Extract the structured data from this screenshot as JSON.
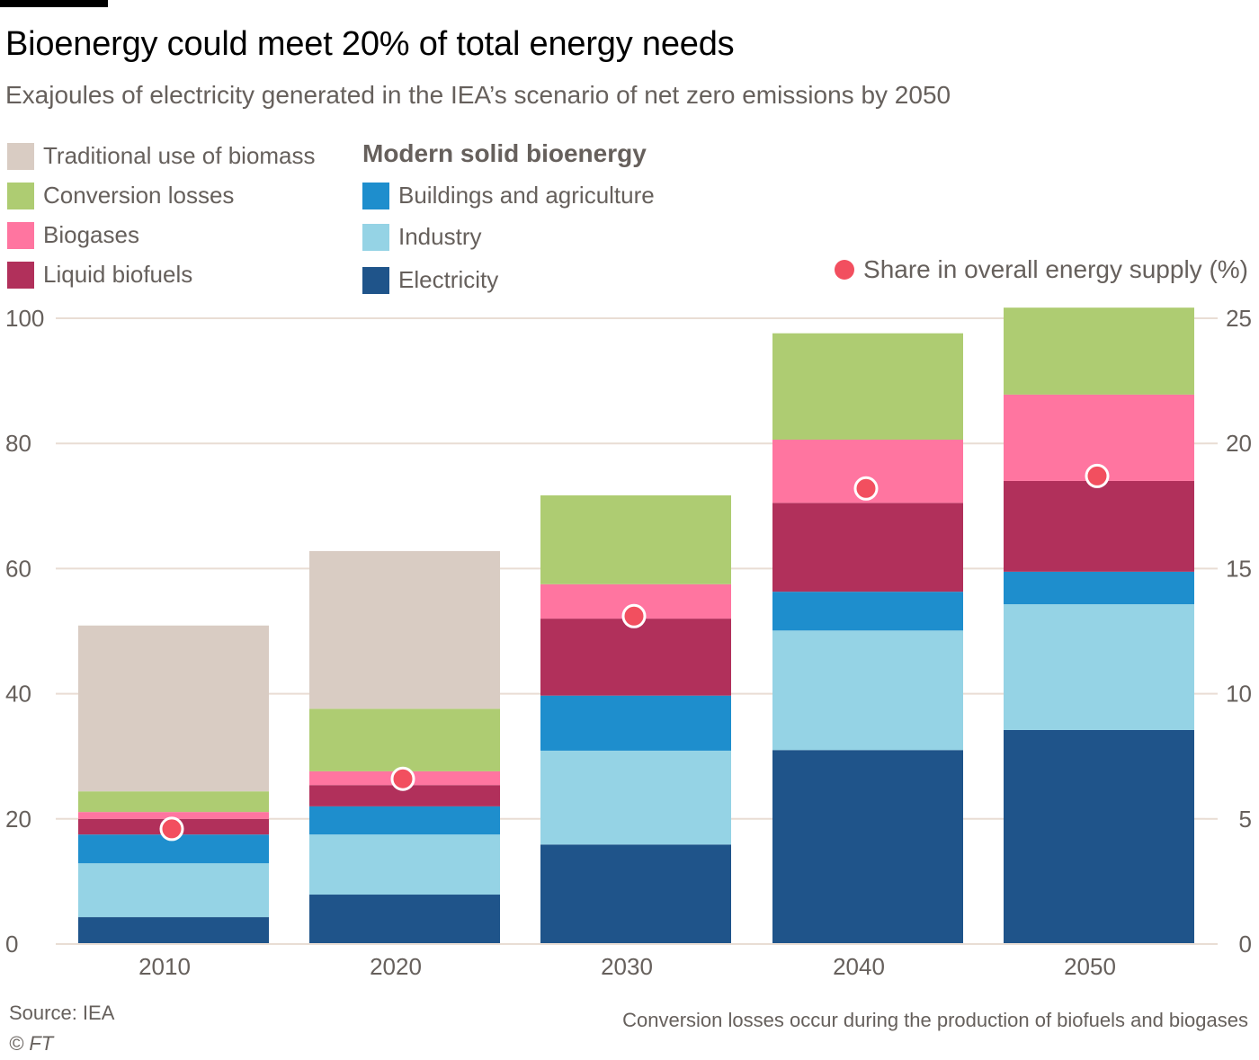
{
  "header": {
    "title": "Bioenergy could meet 20% of total energy needs",
    "subtitle": "Exajoules of electricity generated in the IEA’s scenario of net zero emissions by 2050"
  },
  "legend": {
    "left": [
      {
        "label": "Traditional use of biomass",
        "color": "#d9ccc3"
      },
      {
        "label": "Conversion losses",
        "color": "#aecc72"
      },
      {
        "label": "Biogases",
        "color": "#ff75a0"
      },
      {
        "label": "Liquid biofuels",
        "color": "#b1305b"
      }
    ],
    "heading": "Modern solid bioenergy",
    "right": [
      {
        "label": "Buildings and agriculture",
        "color": "#1e8ecd"
      },
      {
        "label": "Industry",
        "color": "#95d3e5"
      },
      {
        "label": "Electricity",
        "color": "#1f548a"
      }
    ],
    "dot": {
      "label": "Share in overall energy supply (%)",
      "color": "#f24f5f"
    }
  },
  "footer": {
    "source": "Source: IEA",
    "copyright": "© FT",
    "note": "Conversion losses occur during the production of biofuels and biogases"
  },
  "chart_data": {
    "type": "bar",
    "stacked": true,
    "title": "Bioenergy could meet 20% of total energy needs",
    "subtitle": "Exajoules of electricity generated in the IEA’s scenario of net zero emissions by 2050",
    "xlabel": "",
    "ylabel": "Exajoules",
    "categories": [
      "2010",
      "2020",
      "2030",
      "2040",
      "2050"
    ],
    "ylim": [
      0,
      100
    ],
    "yticks": [
      0,
      20,
      40,
      60,
      80,
      100
    ],
    "y2lim": [
      0,
      25
    ],
    "y2ticks": [
      0,
      5,
      10,
      15,
      20,
      25
    ],
    "y2label": "Share in overall energy supply (%)",
    "grid": true,
    "legend_position": "top-left",
    "series": [
      {
        "name": "Electricity",
        "color": "#1f548a",
        "values": [
          4.3,
          7.9,
          15.9,
          31.0,
          34.2
        ]
      },
      {
        "name": "Industry",
        "color": "#95d3e5",
        "values": [
          8.6,
          9.6,
          15.0,
          19.1,
          20.1
        ]
      },
      {
        "name": "Buildings and agriculture",
        "color": "#1e8ecd",
        "values": [
          4.6,
          4.5,
          8.8,
          6.2,
          5.2
        ]
      },
      {
        "name": "Liquid biofuels",
        "color": "#b1305b",
        "values": [
          2.5,
          3.4,
          12.3,
          14.2,
          14.5
        ]
      },
      {
        "name": "Biogases",
        "color": "#ff75a0",
        "values": [
          1.1,
          2.2,
          5.5,
          10.1,
          13.8
        ]
      },
      {
        "name": "Conversion losses",
        "color": "#aecc72",
        "values": [
          3.3,
          10.0,
          14.2,
          17.0,
          13.9
        ]
      },
      {
        "name": "Traditional use of biomass",
        "color": "#d9ccc3",
        "values": [
          26.5,
          25.2,
          0,
          0,
          0
        ]
      }
    ],
    "share_series": {
      "name": "Share in overall energy supply (%)",
      "axis": "right",
      "color": "#f24f5f",
      "values": [
        4.6,
        6.6,
        13.1,
        18.2,
        18.7
      ]
    }
  }
}
